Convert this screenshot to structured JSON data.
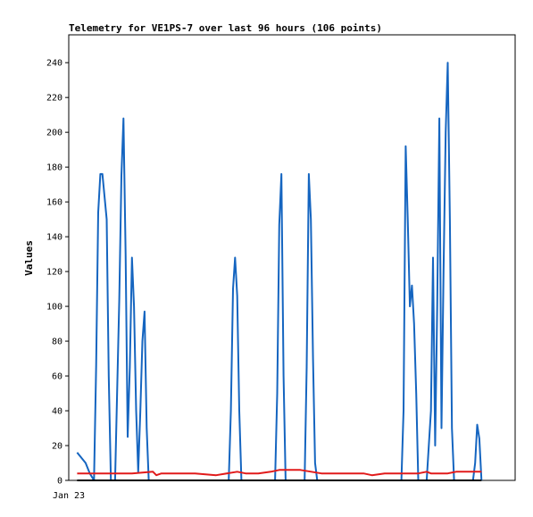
{
  "chart_data": {
    "type": "line",
    "title": "Telemetry for VE1PS-7 over last 96 hours (106 points)",
    "xlabel": "",
    "ylabel": "Values",
    "x_tick_labels": [
      "Jan 23"
    ],
    "y_ticks": [
      0,
      20,
      40,
      60,
      80,
      100,
      120,
      140,
      160,
      180,
      200,
      220,
      240
    ],
    "ylim": [
      0,
      256
    ],
    "xlim": [
      0,
      106
    ],
    "grid": false,
    "legend": "none",
    "series": [
      {
        "color": "#1565c0",
        "x": [
          2,
          4,
          5,
          6,
          6.5,
          7,
          7.5,
          8,
          9,
          9.5,
          10,
          10.5,
          11,
          12,
          12.5,
          13,
          13.5,
          14,
          14.5,
          15,
          15.5,
          16,
          16.5,
          17,
          17.5,
          18,
          18.5,
          19,
          19.5,
          20,
          20.5,
          21,
          21.5,
          22,
          38,
          38.5,
          39,
          39.5,
          40,
          40.5,
          41,
          41.5,
          42,
          49,
          49.5,
          50,
          50.5,
          51,
          51.5,
          52,
          56,
          56.5,
          57,
          57.5,
          58,
          58.5,
          59,
          59.5,
          60,
          60.5,
          79,
          79.5,
          80,
          80.5,
          81,
          81.5,
          82,
          82.5,
          83,
          83.5,
          84,
          84.5,
          85,
          86,
          86.5,
          87,
          87.5,
          88,
          88.5,
          89,
          89.5,
          90,
          90.5,
          91,
          91.5,
          92,
          96,
          96.5,
          97,
          97.5,
          98
        ],
        "values": [
          16,
          10,
          4,
          0,
          66,
          154,
          176,
          176,
          150,
          60,
          0,
          0,
          0,
          104,
          175,
          208,
          130,
          25,
          65,
          128,
          100,
          40,
          5,
          40,
          80,
          97,
          30,
          0,
          0,
          0,
          0,
          0,
          0,
          0,
          0,
          40,
          110,
          128,
          106,
          40,
          0,
          0,
          0,
          0,
          50,
          147,
          176,
          60,
          0,
          0,
          0,
          65,
          176,
          150,
          70,
          10,
          0,
          0,
          0,
          0,
          0,
          40,
          192,
          150,
          100,
          112,
          90,
          50,
          0,
          0,
          0,
          0,
          0,
          40,
          128,
          20,
          100,
          208,
          30,
          120,
          200,
          240,
          150,
          30,
          0,
          0,
          0,
          10,
          32,
          24,
          0
        ]
      },
      {
        "color": "#e11b1b",
        "x": [
          2,
          5,
          10,
          15,
          20,
          20.8,
          22,
          25,
          30,
          35,
          40,
          42,
          45,
          48,
          50,
          55,
          60,
          62,
          66,
          70,
          72,
          75,
          80,
          83,
          85,
          86,
          90,
          92,
          95,
          98
        ],
        "values": [
          4,
          4,
          4,
          4,
          5,
          3,
          4,
          4,
          4,
          3,
          5,
          4,
          4,
          5,
          6,
          6,
          4,
          4,
          4,
          4,
          3,
          4,
          4,
          4,
          5,
          4,
          4,
          5,
          5,
          5
        ]
      },
      {
        "color": "#000000",
        "x": [
          2,
          98
        ],
        "values": [
          0,
          0
        ]
      }
    ]
  }
}
